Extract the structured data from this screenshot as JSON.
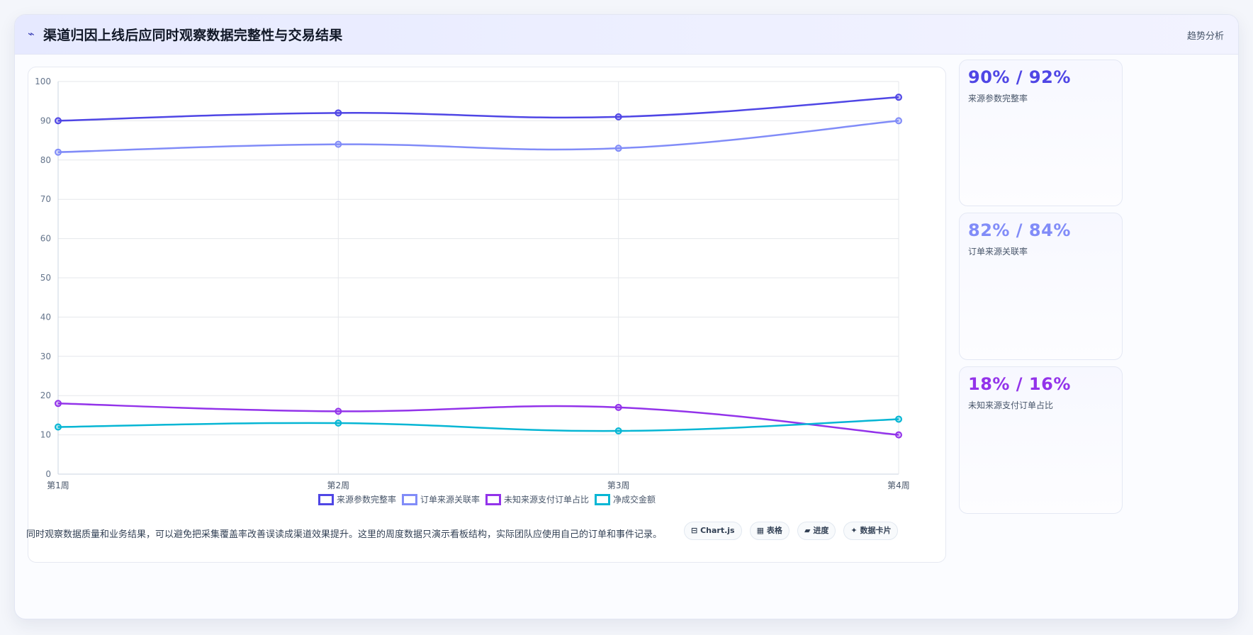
{
  "header": {
    "icon": "sparkline-icon",
    "icon_glyph": "⌁",
    "title": "渠道归因上线后应同时观察数据完整性与交易结果",
    "tag": "趋势分析"
  },
  "chart_data": {
    "type": "line",
    "categories": [
      "第1周",
      "第2周",
      "第3周",
      "第4周"
    ],
    "ylim": [
      0,
      100
    ],
    "yticks": [
      0,
      10,
      20,
      30,
      40,
      50,
      60,
      70,
      80,
      90,
      100
    ],
    "grid": true,
    "legend_position": "bottom-center",
    "series": [
      {
        "name": "来源参数完整率",
        "color": "#4f46e5",
        "values": [
          90,
          92,
          91,
          96
        ]
      },
      {
        "name": "订单来源关联率",
        "color": "#818cf8",
        "values": [
          82,
          84,
          83,
          90
        ]
      },
      {
        "name": "未知来源支付订单占比",
        "color": "#9333ea",
        "values": [
          18,
          16,
          17,
          10
        ]
      },
      {
        "name": "净成交金额",
        "color": "#06b6d4",
        "values": [
          12,
          13,
          11,
          14
        ]
      }
    ]
  },
  "kpis": [
    {
      "value": "90% / 92%",
      "label": "来源参数完整率",
      "color": "#4f46e5"
    },
    {
      "value": "82% / 84%",
      "label": "订单来源关联率",
      "color": "#818cf8"
    },
    {
      "value": "18% / 16%",
      "label": "未知来源支付订单占比",
      "color": "#9333ea"
    }
  ],
  "footer": {
    "note": "同时观察数据质量和业务结果，可以避免把采集覆盖率改善误读成渠道效果提升。这里的周度数据只演示看板结构，实际团队应使用自己的订单和事件记录。",
    "chips": [
      {
        "icon": "⊟",
        "label": "Chart.js"
      },
      {
        "icon": "▦",
        "label": "表格"
      },
      {
        "icon": "▰",
        "label": "进度"
      },
      {
        "icon": "✦",
        "label": "数据卡片"
      }
    ]
  }
}
